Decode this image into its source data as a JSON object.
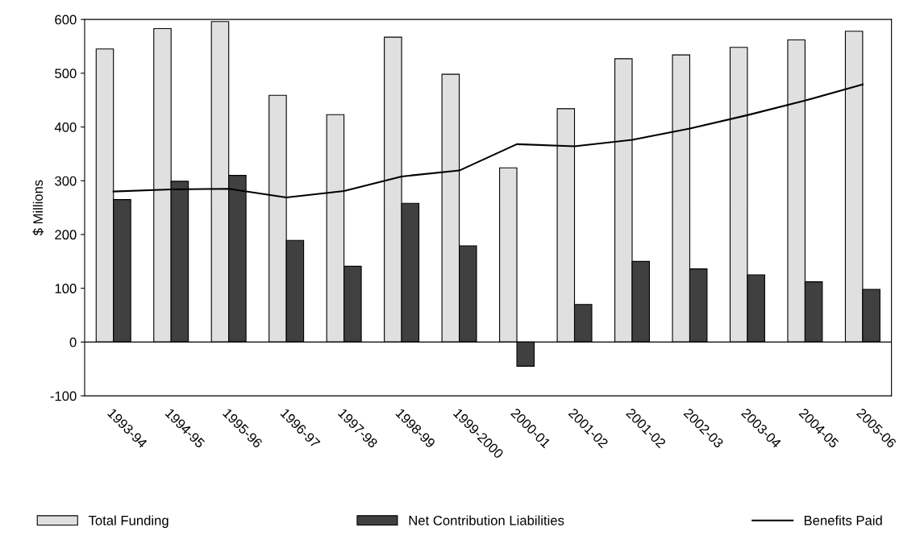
{
  "chart_data": {
    "type": "bar",
    "ylabel": "$ Millions",
    "categories": [
      "1993-94",
      "1994-95",
      "1995-96",
      "1996-97",
      "1997-98",
      "1998-99",
      "1999-2000",
      "2000-01",
      "2001-02",
      "2001-02",
      "2002-03",
      "2003-04",
      "2004-05",
      "2005-06"
    ],
    "series": [
      {
        "name": "Total Funding",
        "color": "#e0e0e0",
        "values": [
          545,
          583,
          596,
          459,
          423,
          567,
          498,
          324,
          434,
          527,
          534,
          548,
          562,
          578
        ]
      },
      {
        "name": "Net Contribution Liabilities",
        "color": "#404040",
        "values": [
          265,
          299,
          310,
          189,
          141,
          258,
          179,
          -45,
          70,
          150,
          136,
          125,
          112,
          98
        ]
      },
      {
        "name": "Benefits Paid",
        "type": "line",
        "color": "#000000",
        "values": [
          280,
          284,
          285,
          269,
          281,
          308,
          319,
          368,
          364,
          376,
          397,
          422,
          449,
          479
        ]
      }
    ],
    "ylim": [
      -100,
      600
    ],
    "yticks": [
      -100,
      0,
      100,
      200,
      300,
      400,
      500,
      600
    ],
    "ref_lines": [
      {
        "axis": "y",
        "value": 0,
        "color": "#000000"
      }
    ],
    "grid": false,
    "legend": "bottom",
    "marker": "none"
  }
}
